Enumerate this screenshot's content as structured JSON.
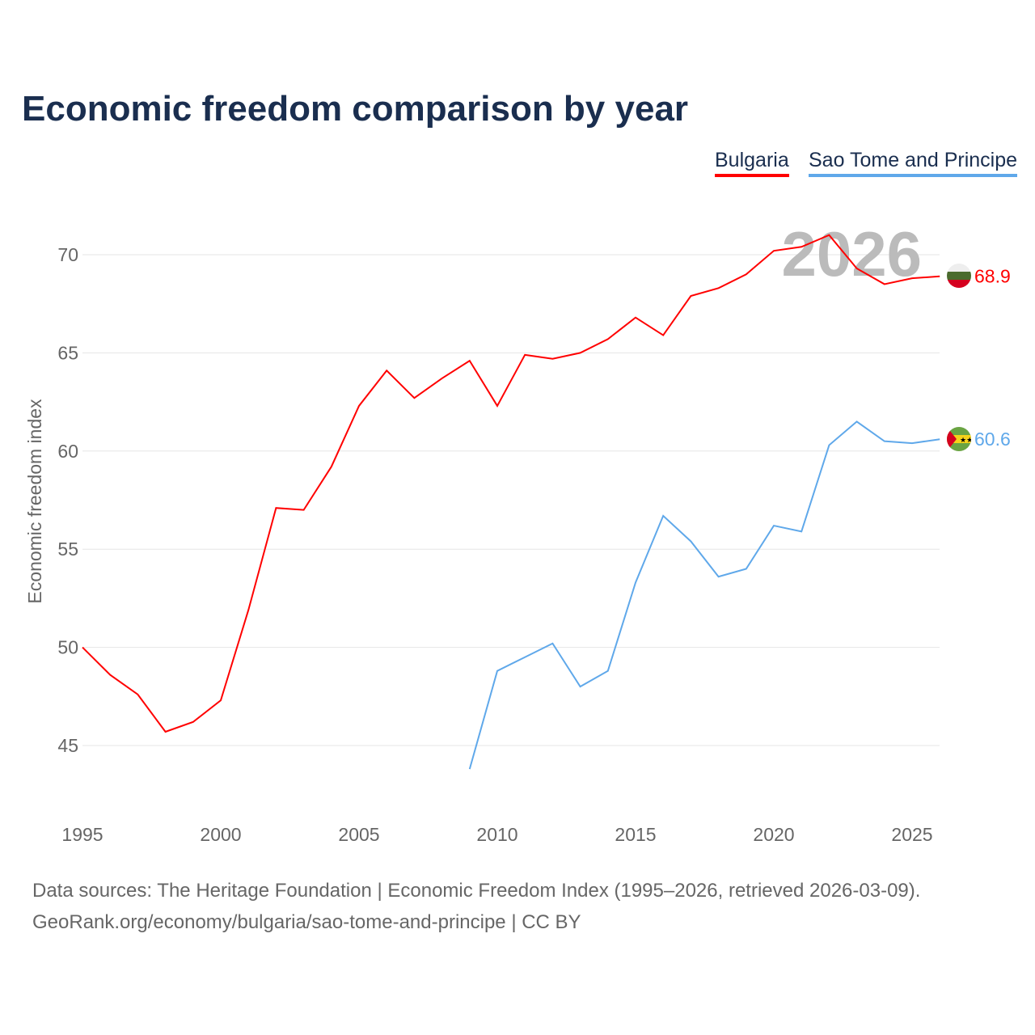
{
  "title": "Economic freedom comparison by year",
  "sources": {
    "line1": "Data sources: The Heritage Foundation | Economic Freedom Index (1995–2026, retrieved 2026-03-09).",
    "line2": "GeoRank.org/economy/bulgaria/sao-tome-and-principe | CC BY"
  },
  "chart_data": {
    "type": "line",
    "title": "Economic freedom comparison by year",
    "ylabel": "Economic freedom index",
    "xlabel": "",
    "year_label": "2026",
    "xlim": [
      1995,
      2026
    ],
    "ylim": [
      42,
      72
    ],
    "xticks": [
      1995,
      2000,
      2005,
      2010,
      2015,
      2020,
      2025
    ],
    "yticks": [
      45,
      50,
      55,
      60,
      65,
      70
    ],
    "legend_position": "top-right",
    "series": [
      {
        "name": "Bulgaria",
        "color": "#ff0000",
        "end_label": "68.9",
        "x": [
          1995,
          1996,
          1997,
          1998,
          1999,
          2000,
          2001,
          2002,
          2003,
          2004,
          2005,
          2006,
          2007,
          2008,
          2009,
          2010,
          2011,
          2012,
          2013,
          2014,
          2015,
          2016,
          2017,
          2018,
          2019,
          2020,
          2021,
          2022,
          2023,
          2024,
          2025,
          2026
        ],
        "y": [
          50.0,
          48.6,
          47.6,
          45.7,
          46.2,
          47.3,
          51.9,
          57.1,
          57.0,
          59.2,
          62.3,
          64.1,
          62.7,
          63.7,
          64.6,
          62.3,
          64.9,
          64.7,
          65.0,
          65.7,
          66.8,
          65.9,
          67.9,
          68.3,
          69.0,
          70.2,
          70.4,
          71.0,
          69.3,
          68.5,
          68.8,
          68.9
        ]
      },
      {
        "name": "Sao Tome and Principe",
        "color": "#5fa8ea",
        "end_label": "60.6",
        "x": [
          2009,
          2010,
          2011,
          2012,
          2013,
          2014,
          2015,
          2016,
          2017,
          2018,
          2019,
          2020,
          2021,
          2022,
          2023,
          2024,
          2025,
          2026
        ],
        "y": [
          43.8,
          48.8,
          49.5,
          50.2,
          48.0,
          48.8,
          53.3,
          56.7,
          55.4,
          53.6,
          54.0,
          56.2,
          55.9,
          60.3,
          61.5,
          60.5,
          60.4,
          60.6
        ]
      }
    ]
  }
}
